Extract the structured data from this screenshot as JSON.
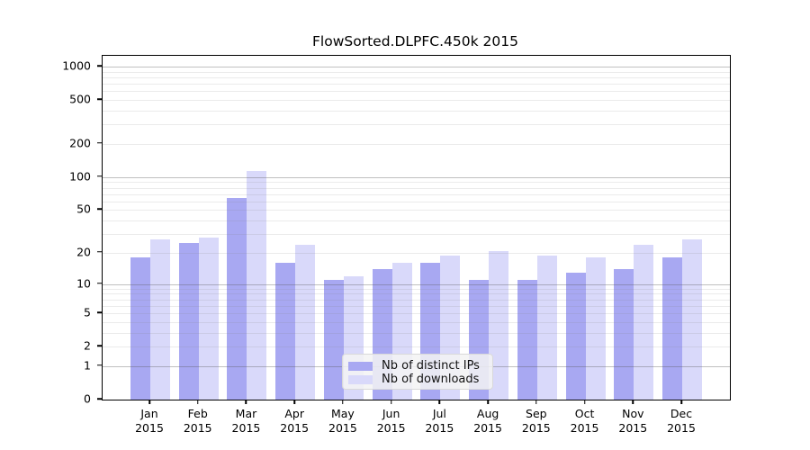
{
  "title": "FlowSorted.DLPFC.450k 2015",
  "legend": {
    "entries": [
      {
        "label": "Nb of distinct IPs",
        "color": "#a8a8f2"
      },
      {
        "label": "Nb of downloads",
        "color": "#d9d9fa"
      }
    ]
  },
  "chart_data": {
    "type": "bar",
    "title": "FlowSorted.DLPFC.450k 2015",
    "scale": "log1p",
    "categories": [
      "Jan",
      "Feb",
      "Mar",
      "Apr",
      "May",
      "Jun",
      "Jul",
      "Aug",
      "Sep",
      "Oct",
      "Nov",
      "Dec"
    ],
    "category_year": "2015",
    "series": [
      {
        "name": "Nb of distinct IPs",
        "color": "#a8a8f2",
        "values": [
          18,
          25,
          65,
          16,
          11,
          14,
          16,
          11,
          11,
          13,
          14,
          18
        ]
      },
      {
        "name": "Nb of downloads",
        "color": "#d9d9fa",
        "values": [
          27,
          28,
          114,
          24,
          12,
          16,
          19,
          21,
          19,
          18,
          24,
          27
        ]
      }
    ],
    "xlabel": "",
    "ylabel": "",
    "y_ticks": [
      0,
      1,
      2,
      5,
      10,
      20,
      50,
      100,
      200,
      500,
      1000
    ],
    "y_major_gridlines": [
      1,
      10,
      100,
      1000
    ],
    "ylim": [
      0,
      1250
    ],
    "grid": true,
    "legend_position": "bottom-center"
  }
}
